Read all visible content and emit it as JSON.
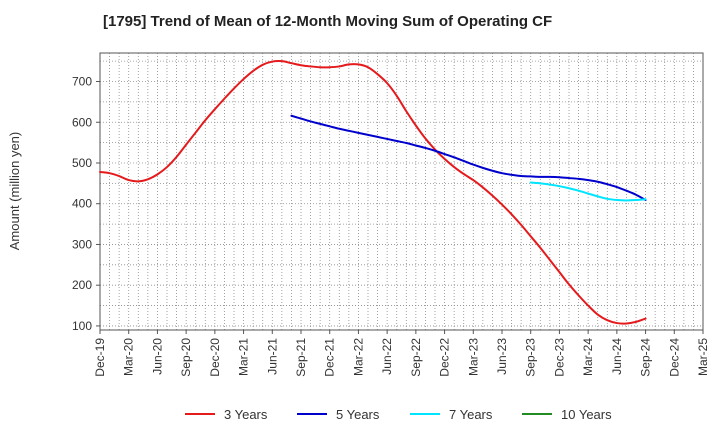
{
  "chart_data": {
    "type": "line",
    "title": "[1795]  Trend of Mean of 12-Month Moving Sum of Operating CF",
    "xlabel": "",
    "ylabel": "Amount (million yen)",
    "ylim": [
      90,
      770
    ],
    "yticks": [
      100,
      200,
      300,
      400,
      500,
      600,
      700
    ],
    "x_tick_labels": [
      "Dec-19",
      "Mar-20",
      "Jun-20",
      "Sep-20",
      "Dec-20",
      "Mar-21",
      "Jun-21",
      "Sep-21",
      "Dec-21",
      "Mar-22",
      "Jun-22",
      "Sep-22",
      "Dec-22",
      "Mar-23",
      "Jun-23",
      "Sep-23",
      "Dec-23",
      "Mar-24",
      "Jun-24",
      "Sep-24",
      "Dec-24",
      "Mar-25"
    ],
    "grid": true,
    "legend_position": "bottom",
    "series": [
      {
        "name": "3 Years",
        "color": "#e41a1c",
        "points": [
          [
            "Dec-19",
            478
          ],
          [
            "Jan-20",
            475
          ],
          [
            "Feb-20",
            468
          ],
          [
            "Mar-20",
            458
          ],
          [
            "Apr-20",
            455
          ],
          [
            "May-20",
            460
          ],
          [
            "Jun-20",
            472
          ],
          [
            "Jul-20",
            490
          ],
          [
            "Aug-20",
            515
          ],
          [
            "Sep-20",
            545
          ],
          [
            "Oct-20",
            575
          ],
          [
            "Nov-20",
            605
          ],
          [
            "Dec-20",
            632
          ],
          [
            "Jan-21",
            658
          ],
          [
            "Feb-21",
            683
          ],
          [
            "Mar-21",
            706
          ],
          [
            "Apr-21",
            726
          ],
          [
            "May-21",
            741
          ],
          [
            "Jun-21",
            749
          ],
          [
            "Jul-21",
            750
          ],
          [
            "Aug-21",
            745
          ],
          [
            "Sep-21",
            740
          ],
          [
            "Oct-21",
            737
          ],
          [
            "Nov-21",
            735
          ],
          [
            "Dec-21",
            735
          ],
          [
            "Jan-22",
            737
          ],
          [
            "Feb-22",
            742
          ],
          [
            "Mar-22",
            742
          ],
          [
            "Apr-22",
            735
          ],
          [
            "May-22",
            718
          ],
          [
            "Jun-22",
            696
          ],
          [
            "Jul-22",
            665
          ],
          [
            "Aug-22",
            627
          ],
          [
            "Sep-22",
            592
          ],
          [
            "Oct-22",
            560
          ],
          [
            "Nov-22",
            533
          ],
          [
            "Dec-22",
            510
          ],
          [
            "Jan-23",
            490
          ],
          [
            "Feb-23",
            473
          ],
          [
            "Mar-23",
            458
          ],
          [
            "Apr-23",
            440
          ],
          [
            "May-23",
            420
          ],
          [
            "Jun-23",
            398
          ],
          [
            "Jul-23",
            374
          ],
          [
            "Aug-23",
            348
          ],
          [
            "Sep-23",
            320
          ],
          [
            "Oct-23",
            292
          ],
          [
            "Nov-23",
            262
          ],
          [
            "Dec-23",
            232
          ],
          [
            "Jan-24",
            202
          ],
          [
            "Feb-24",
            175
          ],
          [
            "Mar-24",
            150
          ],
          [
            "Apr-24",
            128
          ],
          [
            "May-24",
            114
          ],
          [
            "Jun-24",
            107
          ],
          [
            "Jul-24",
            106
          ],
          [
            "Aug-24",
            110
          ],
          [
            "Sep-24",
            118
          ]
        ]
      },
      {
        "name": "5 Years",
        "color": "#0000cc",
        "points": [
          [
            "Aug-21",
            616
          ],
          [
            "Sep-21",
            609
          ],
          [
            "Oct-21",
            602
          ],
          [
            "Nov-21",
            596
          ],
          [
            "Dec-21",
            590
          ],
          [
            "Jan-22",
            584
          ],
          [
            "Feb-22",
            579
          ],
          [
            "Mar-22",
            574
          ],
          [
            "Apr-22",
            569
          ],
          [
            "May-22",
            564
          ],
          [
            "Jun-22",
            559
          ],
          [
            "Jul-22",
            554
          ],
          [
            "Aug-22",
            549
          ],
          [
            "Sep-22",
            543
          ],
          [
            "Oct-22",
            537
          ],
          [
            "Nov-22",
            530
          ],
          [
            "Dec-22",
            522
          ],
          [
            "Jan-23",
            514
          ],
          [
            "Feb-23",
            505
          ],
          [
            "Mar-23",
            496
          ],
          [
            "Apr-23",
            488
          ],
          [
            "May-23",
            481
          ],
          [
            "Jun-23",
            475
          ],
          [
            "Jul-23",
            471
          ],
          [
            "Aug-23",
            468
          ],
          [
            "Sep-23",
            467
          ],
          [
            "Oct-23",
            466
          ],
          [
            "Nov-23",
            466
          ],
          [
            "Dec-23",
            465
          ],
          [
            "Jan-24",
            463
          ],
          [
            "Feb-24",
            461
          ],
          [
            "Mar-24",
            458
          ],
          [
            "Apr-24",
            454
          ],
          [
            "May-24",
            448
          ],
          [
            "Jun-24",
            441
          ],
          [
            "Jul-24",
            432
          ],
          [
            "Aug-24",
            422
          ],
          [
            "Sep-24",
            409
          ]
        ]
      },
      {
        "name": "7 Years",
        "color": "#00e5ff",
        "points": [
          [
            "Sep-23",
            452
          ],
          [
            "Oct-23",
            450
          ],
          [
            "Nov-23",
            447
          ],
          [
            "Dec-23",
            443
          ],
          [
            "Jan-24",
            438
          ],
          [
            "Feb-24",
            432
          ],
          [
            "Mar-24",
            425
          ],
          [
            "Apr-24",
            418
          ],
          [
            "May-24",
            412
          ],
          [
            "Jun-24",
            409
          ],
          [
            "Jul-24",
            408
          ],
          [
            "Aug-24",
            409
          ],
          [
            "Sep-24",
            411
          ]
        ]
      },
      {
        "name": "10 Years",
        "color": "#228b22",
        "points": []
      }
    ]
  }
}
